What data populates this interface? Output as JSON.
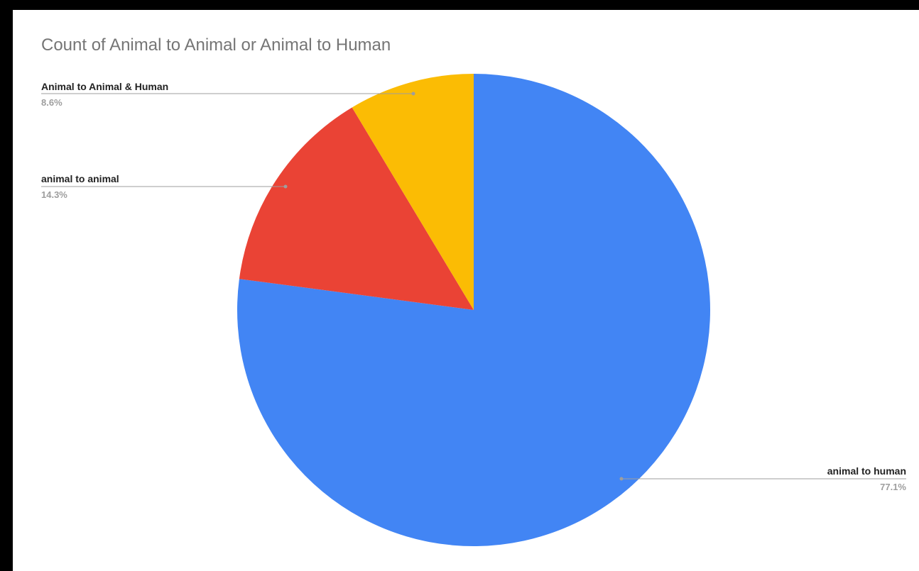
{
  "chart_data": {
    "type": "pie",
    "title": "Count of Animal to Animal or Animal to Human",
    "start_angle_deg": 0,
    "direction": "clockwise",
    "slices": [
      {
        "label": "animal to human",
        "percent_label": "77.1%",
        "value": 77.1,
        "color": "#4285f4"
      },
      {
        "label": "animal to animal",
        "percent_label": "14.3%",
        "value": 14.3,
        "color": "#ea4335"
      },
      {
        "label": "Animal to Animal & Human",
        "percent_label": "8.6%",
        "value": 8.6,
        "color": "#fbbc04"
      }
    ]
  }
}
